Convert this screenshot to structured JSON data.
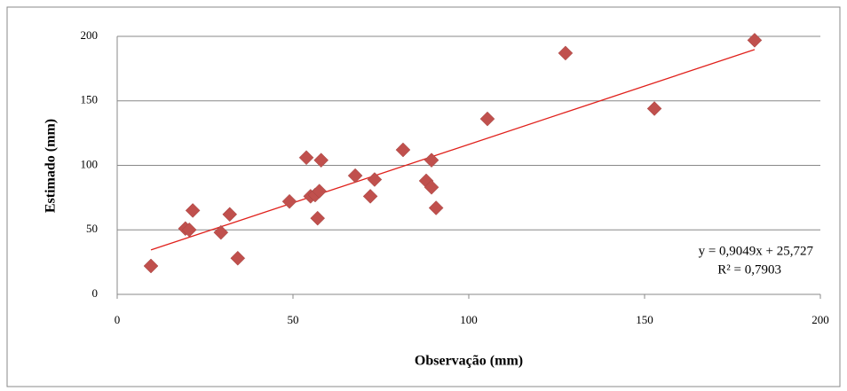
{
  "chart_data": {
    "type": "scatter",
    "x_label": "Observação (mm)",
    "y_label": "Estimado (mm)",
    "series": [
      {
        "color": "#c0504d",
        "x": [
          9.6,
          19.4,
          20.5,
          21.5,
          29.5,
          32,
          34.3,
          49,
          53.8,
          55,
          56.3,
          57.5,
          57,
          58,
          67.7,
          72,
          73.2,
          81.3,
          87.9,
          89.4,
          89.4,
          90.7,
          105.3,
          127.5,
          152.8,
          181.3
        ],
        "values": [
          22,
          51,
          50,
          65,
          48,
          62,
          28,
          72,
          106,
          76,
          77,
          80,
          59,
          104,
          92,
          76,
          89,
          112,
          88,
          104,
          83,
          67,
          136,
          187,
          144,
          197
        ]
      }
    ],
    "trendline": {
      "slope": 0.9049,
      "intercept": 25.727,
      "color": "#e0201b",
      "equation_label": "y = 0,9049x + 25,727",
      "r2_label": "R² = 0,7903"
    },
    "xlim": [
      0,
      200
    ],
    "xticks": [
      0,
      50,
      100,
      150,
      200
    ],
    "ylim": [
      0,
      200
    ],
    "yticks": [
      0,
      50,
      100,
      150,
      200
    ],
    "grid": true
  }
}
